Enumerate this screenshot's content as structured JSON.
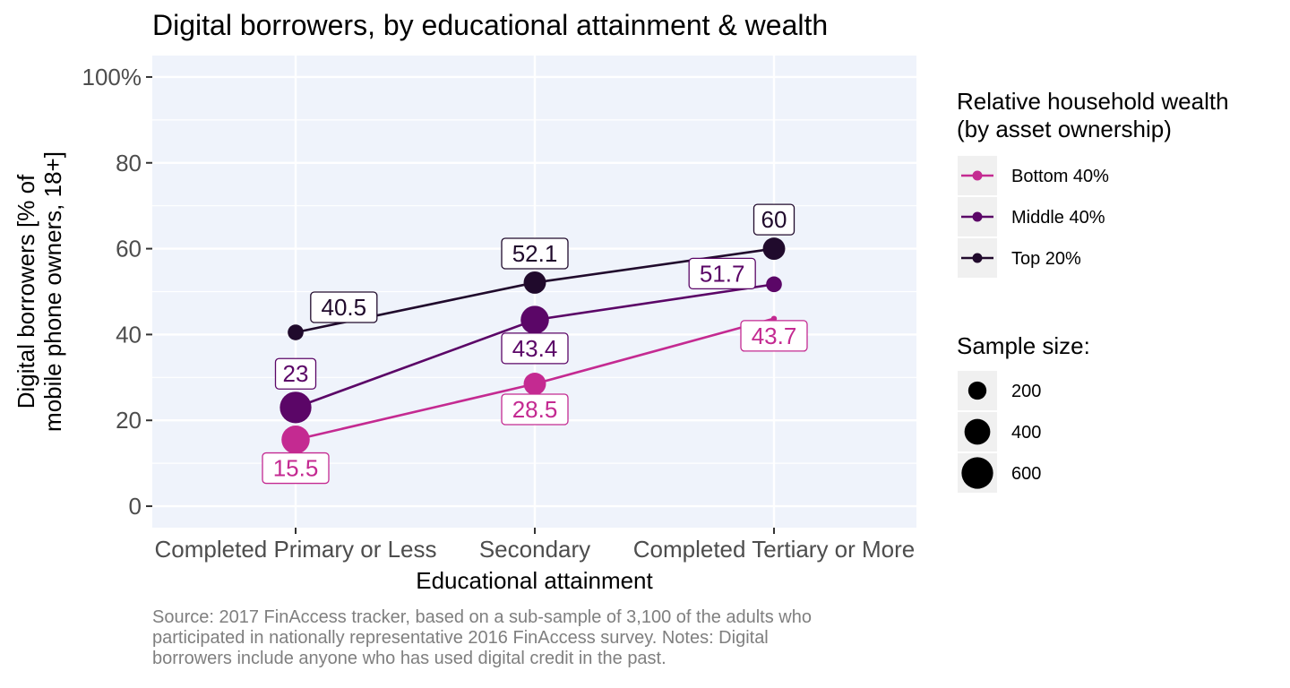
{
  "colors": {
    "panel_bg": "#EFF3FB",
    "grid": "#FFFFFF",
    "legend_key_bg": "#F0F0F0",
    "Bottom 40%": "#C42A91",
    "Middle 40%": "#5B0667",
    "Top 20%": "#200A2C"
  },
  "caption_lines": [
    "Source: 2017 FinAccess tracker, based on a sub-sample of 3,100 of the adults who",
    "participated in nationally representative 2016 FinAccess survey. Notes: Digital",
    "borrowers include anyone who has used digital credit in the past."
  ],
  "chart_data": {
    "type": "line",
    "title": "Digital borrowers, by educational attainment & wealth",
    "xlabel": "Educational attainment",
    "ylabel_lines": [
      "Digital borrowers [% of",
      "mobile phone owners, 18+]"
    ],
    "categories": [
      "Completed Primary or Less",
      "Secondary",
      "Completed Tertiary or More"
    ],
    "ylim": [
      -5,
      105
    ],
    "yticks": [
      0,
      20,
      40,
      60,
      80,
      100
    ],
    "ytick_labels": [
      "0",
      "20",
      "40",
      "60",
      "80",
      "100%"
    ],
    "grid": true,
    "series": [
      {
        "name": "Bottom 40%",
        "values": [
          15.5,
          28.5,
          43.7
        ],
        "labels": [
          "15.5",
          "28.5",
          "43.7"
        ],
        "sample_size": [
          480,
          300,
          20
        ],
        "label_position": "below"
      },
      {
        "name": "Middle 40%",
        "values": [
          23,
          43.4,
          51.7
        ],
        "labels": [
          "23",
          "43.4",
          "51.7"
        ],
        "sample_size": [
          600,
          480,
          150
        ],
        "label_position": [
          "above",
          "below",
          "left"
        ]
      },
      {
        "name": "Top 20%",
        "values": [
          40.5,
          52.1,
          60
        ],
        "labels": [
          "40.5",
          "52.1",
          "60"
        ],
        "sample_size": [
          150,
          300,
          300
        ],
        "label_position": [
          "right",
          "above",
          "above"
        ]
      }
    ],
    "legend": {
      "position": "right",
      "color_title": [
        "Relative household wealth",
        "(by asset ownership)"
      ],
      "size_title": "Sample size:",
      "size_breaks": [
        200,
        400,
        600
      ],
      "size_labels": [
        "200",
        "400",
        "600"
      ]
    }
  }
}
